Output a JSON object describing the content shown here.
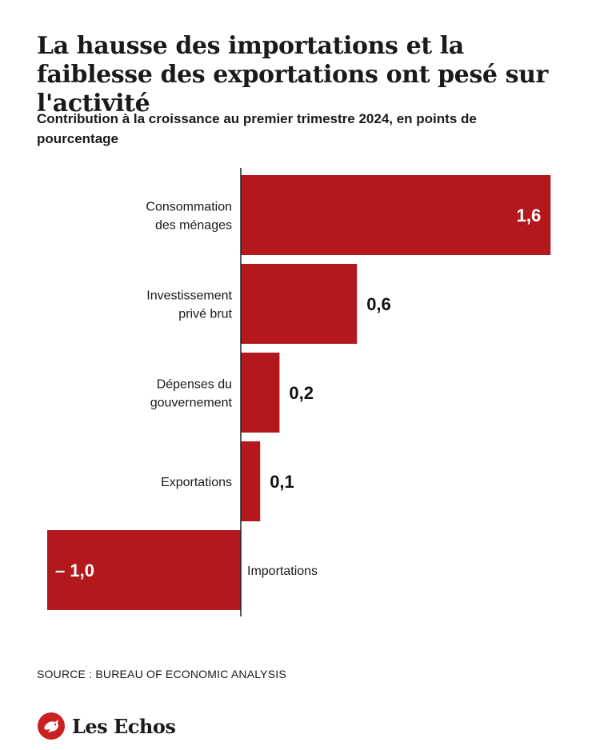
{
  "header": {
    "title": "La hausse des importations et la faiblesse des exportations ont pesé sur l'activité",
    "subtitle": "Contribution à la croissance au premier trimestre 2024, en points de pourcentage"
  },
  "chart_data": {
    "type": "bar",
    "orientation": "horizontal",
    "categories": [
      [
        "Consommation",
        "des ménages"
      ],
      [
        "Investissement",
        "privé brut"
      ],
      [
        "Dépenses du",
        "gouvernement"
      ],
      [
        "Exportations"
      ],
      [
        "Importations"
      ]
    ],
    "values": [
      1.6,
      0.6,
      0.2,
      0.1,
      -1.0
    ],
    "value_labels": [
      "1,6",
      "0,6",
      "0,2",
      "0,1",
      "– 1,0"
    ],
    "xlim": [
      -1.0,
      1.6
    ],
    "grid": false,
    "legend": "none",
    "colors": {
      "bar": "#b3191c",
      "axis": "#222222",
      "label_inside": "#ffffff",
      "label_outside": "#111111"
    }
  },
  "footer": {
    "source": "SOURCE : BUREAU OF ECONOMIC ANALYSIS",
    "brand": "Les Echos",
    "brand_color": "#c8211f",
    "logo_icon": "rooster-icon"
  }
}
